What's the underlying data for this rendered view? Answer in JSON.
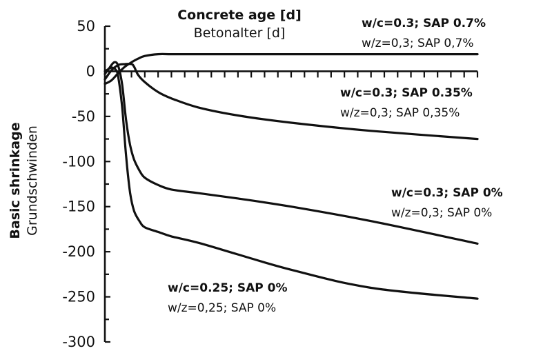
{
  "chart_data": {
    "type": "line",
    "xlabel_en": "Concrete age [d]",
    "xlabel_de": "Betonalter [d]",
    "ylabel_en": "Basic shrinkage",
    "ylabel_de": "Grundschwinden",
    "ylim": [
      -300,
      50
    ],
    "yticks": [
      50,
      0,
      -50,
      -100,
      -150,
      -200,
      -250,
      -300
    ],
    "ytick_labels": [
      "50",
      "0",
      "-50",
      "-100",
      "-150",
      "-200",
      "-250",
      "-300"
    ],
    "xlim": [
      0,
      28
    ],
    "grid": false,
    "line_color": "#111111",
    "series": [
      {
        "name_en": "w/c=0.3; SAP 0.7%",
        "name_de": "w/z=0,3; SAP 0,7%",
        "x": [
          0,
          0.5,
          1,
          1.5,
          2,
          2.5,
          3,
          4,
          5,
          7,
          10,
          14,
          20,
          28
        ],
        "values": [
          -14,
          -10,
          -2,
          5,
          10,
          14,
          17,
          19,
          19,
          19,
          19,
          19,
          19,
          19
        ]
      },
      {
        "name_en": "w/c=0.3; SAP 0.35%",
        "name_de": "w/z=0,3; SAP 0,35%",
        "x": [
          0,
          0.5,
          1,
          1.5,
          2,
          2.2,
          2.5,
          3,
          4,
          5,
          7,
          10,
          14,
          20,
          28
        ],
        "values": [
          -9,
          1,
          7,
          8,
          8,
          5,
          -4,
          -12,
          -23,
          -30,
          -40,
          -49,
          -57,
          -66,
          -75
        ]
      },
      {
        "name_en": "w/c=0.3; SAP 0%",
        "name_de": "w/z=0,3; SAP 0%",
        "x": [
          0,
          0.3,
          0.7,
          1,
          1.3,
          1.6,
          1.9,
          2.2,
          2.6,
          3,
          4,
          5,
          7,
          10,
          14,
          20,
          28
        ],
        "values": [
          -3,
          3,
          10,
          6,
          -15,
          -55,
          -82,
          -98,
          -110,
          -118,
          -126,
          -131,
          -135,
          -141,
          -150,
          -166,
          -191
        ]
      },
      {
        "name_en": "w/c=0.25; SAP 0%",
        "name_de": "w/z=0,25; SAP 0%",
        "x": [
          0,
          0.5,
          0.8,
          1,
          1.3,
          1.6,
          1.9,
          2.2,
          2.6,
          3,
          4,
          5,
          7,
          10,
          14,
          20,
          28
        ],
        "values": [
          0,
          4,
          2,
          -6,
          -40,
          -95,
          -135,
          -155,
          -166,
          -173,
          -178,
          -183,
          -190,
          -203,
          -220,
          -240,
          -252
        ]
      }
    ]
  }
}
